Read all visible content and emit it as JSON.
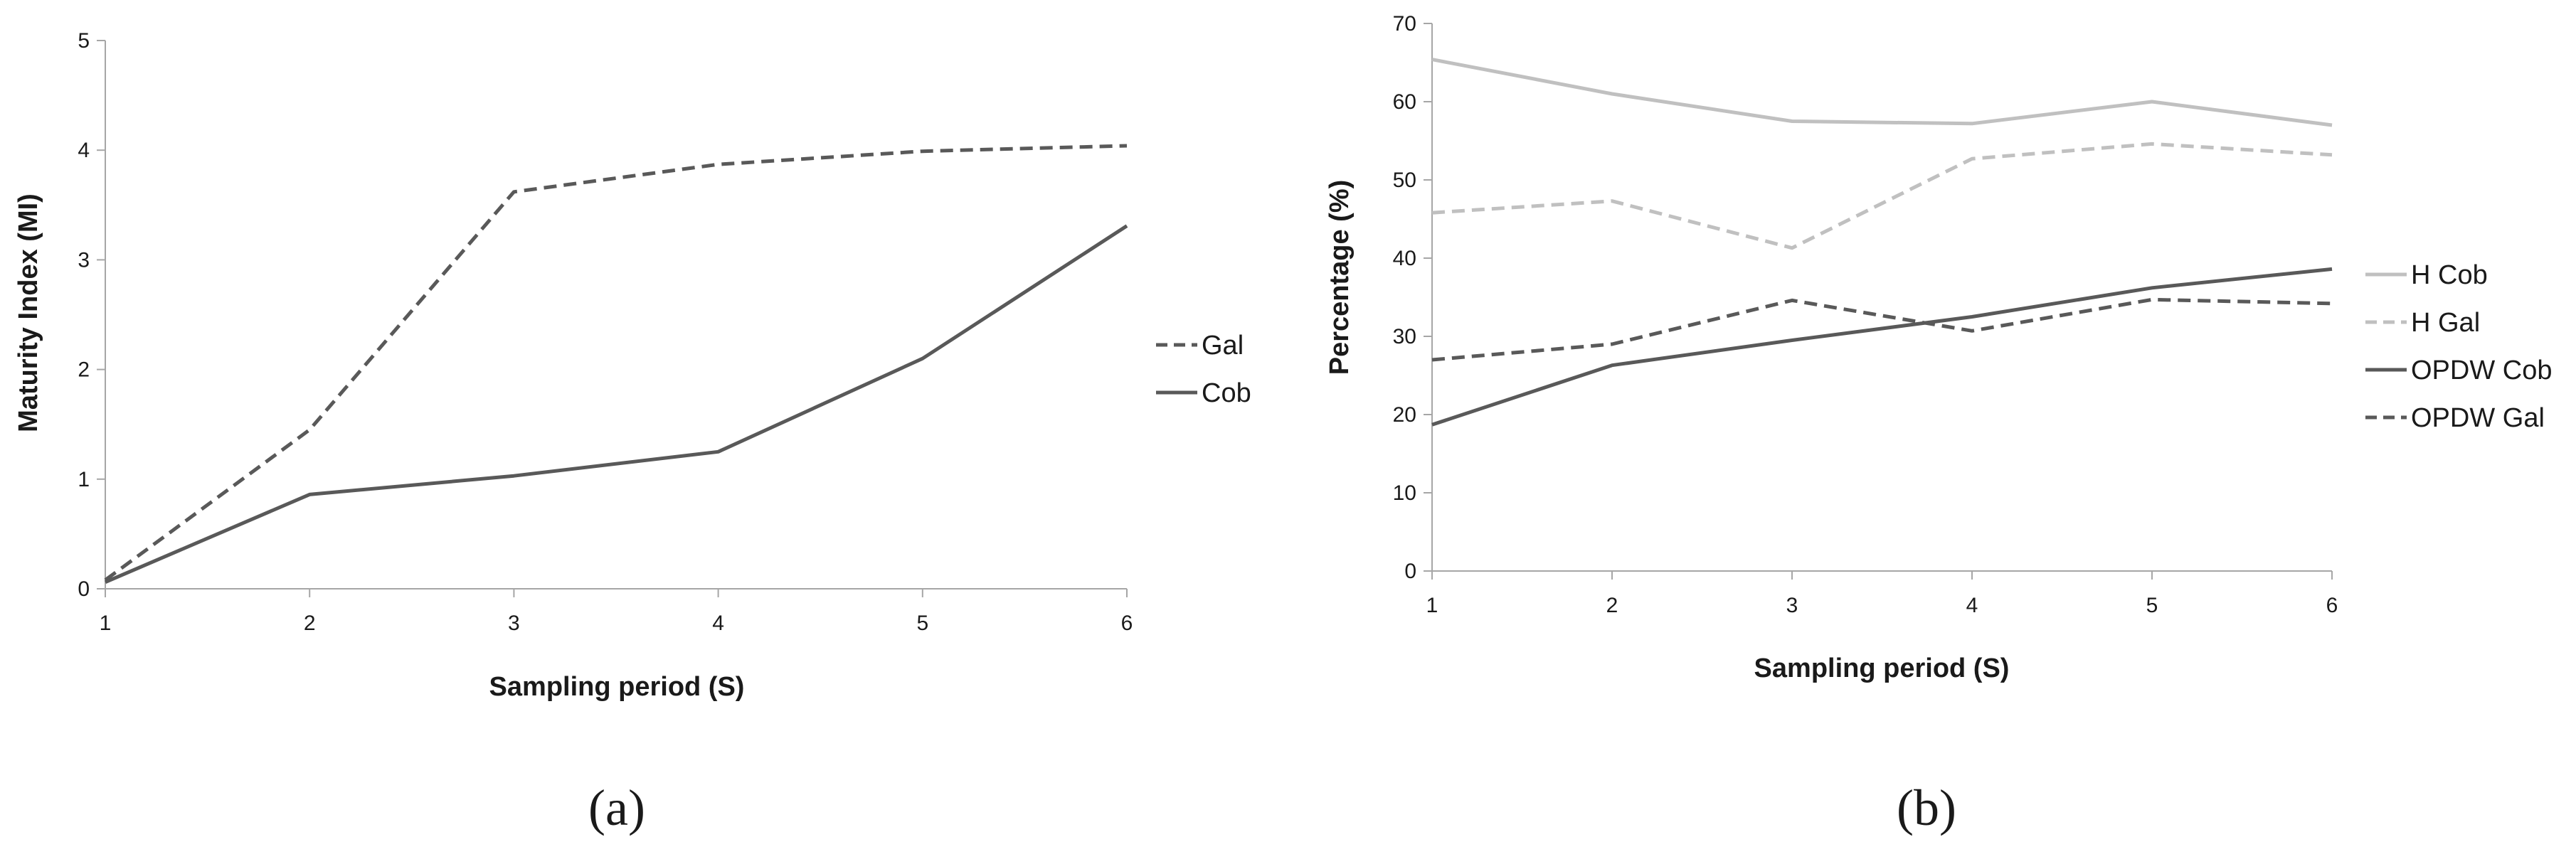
{
  "chart_data": [
    {
      "type": "line",
      "panel_label": "(a)",
      "xlabel": "Sampling period (S)",
      "ylabel": "Maturity Index (MI)",
      "x": [
        1,
        2,
        3,
        4,
        5,
        6
      ],
      "ylim": [
        0,
        5
      ],
      "yticks": [
        0,
        1,
        2,
        3,
        4,
        5
      ],
      "grid": false,
      "legend_position": "right",
      "series": [
        {
          "name": "Gal",
          "values": [
            0.08,
            1.45,
            3.62,
            3.87,
            3.99,
            4.04
          ],
          "color": "#595959",
          "dash": "dashed"
        },
        {
          "name": "Cob",
          "values": [
            0.06,
            0.86,
            1.03,
            1.25,
            2.1,
            3.31
          ],
          "color": "#595959",
          "dash": "solid"
        }
      ]
    },
    {
      "type": "line",
      "panel_label": "(b)",
      "xlabel": "Sampling period (S)",
      "ylabel": "Percentage (%)",
      "x": [
        1,
        2,
        3,
        4,
        5,
        6
      ],
      "ylim": [
        0,
        70
      ],
      "yticks": [
        0,
        10,
        20,
        30,
        40,
        50,
        60,
        70
      ],
      "grid": false,
      "legend_position": "right",
      "series": [
        {
          "name": "H Cob",
          "values": [
            65.4,
            61.0,
            57.5,
            57.2,
            60.0,
            57.0
          ],
          "color": "#c0c0c0",
          "dash": "solid"
        },
        {
          "name": "H Gal",
          "values": [
            45.8,
            47.3,
            41.3,
            52.7,
            54.6,
            53.2
          ],
          "color": "#c0c0c0",
          "dash": "dashed"
        },
        {
          "name": "OPDW Cob",
          "values": [
            18.7,
            26.3,
            29.5,
            32.5,
            36.2,
            38.6
          ],
          "color": "#595959",
          "dash": "solid"
        },
        {
          "name": "OPDW Gal",
          "values": [
            27.0,
            29.0,
            34.6,
            30.7,
            34.7,
            34.2
          ],
          "color": "#595959",
          "dash": "dashed"
        }
      ]
    }
  ]
}
